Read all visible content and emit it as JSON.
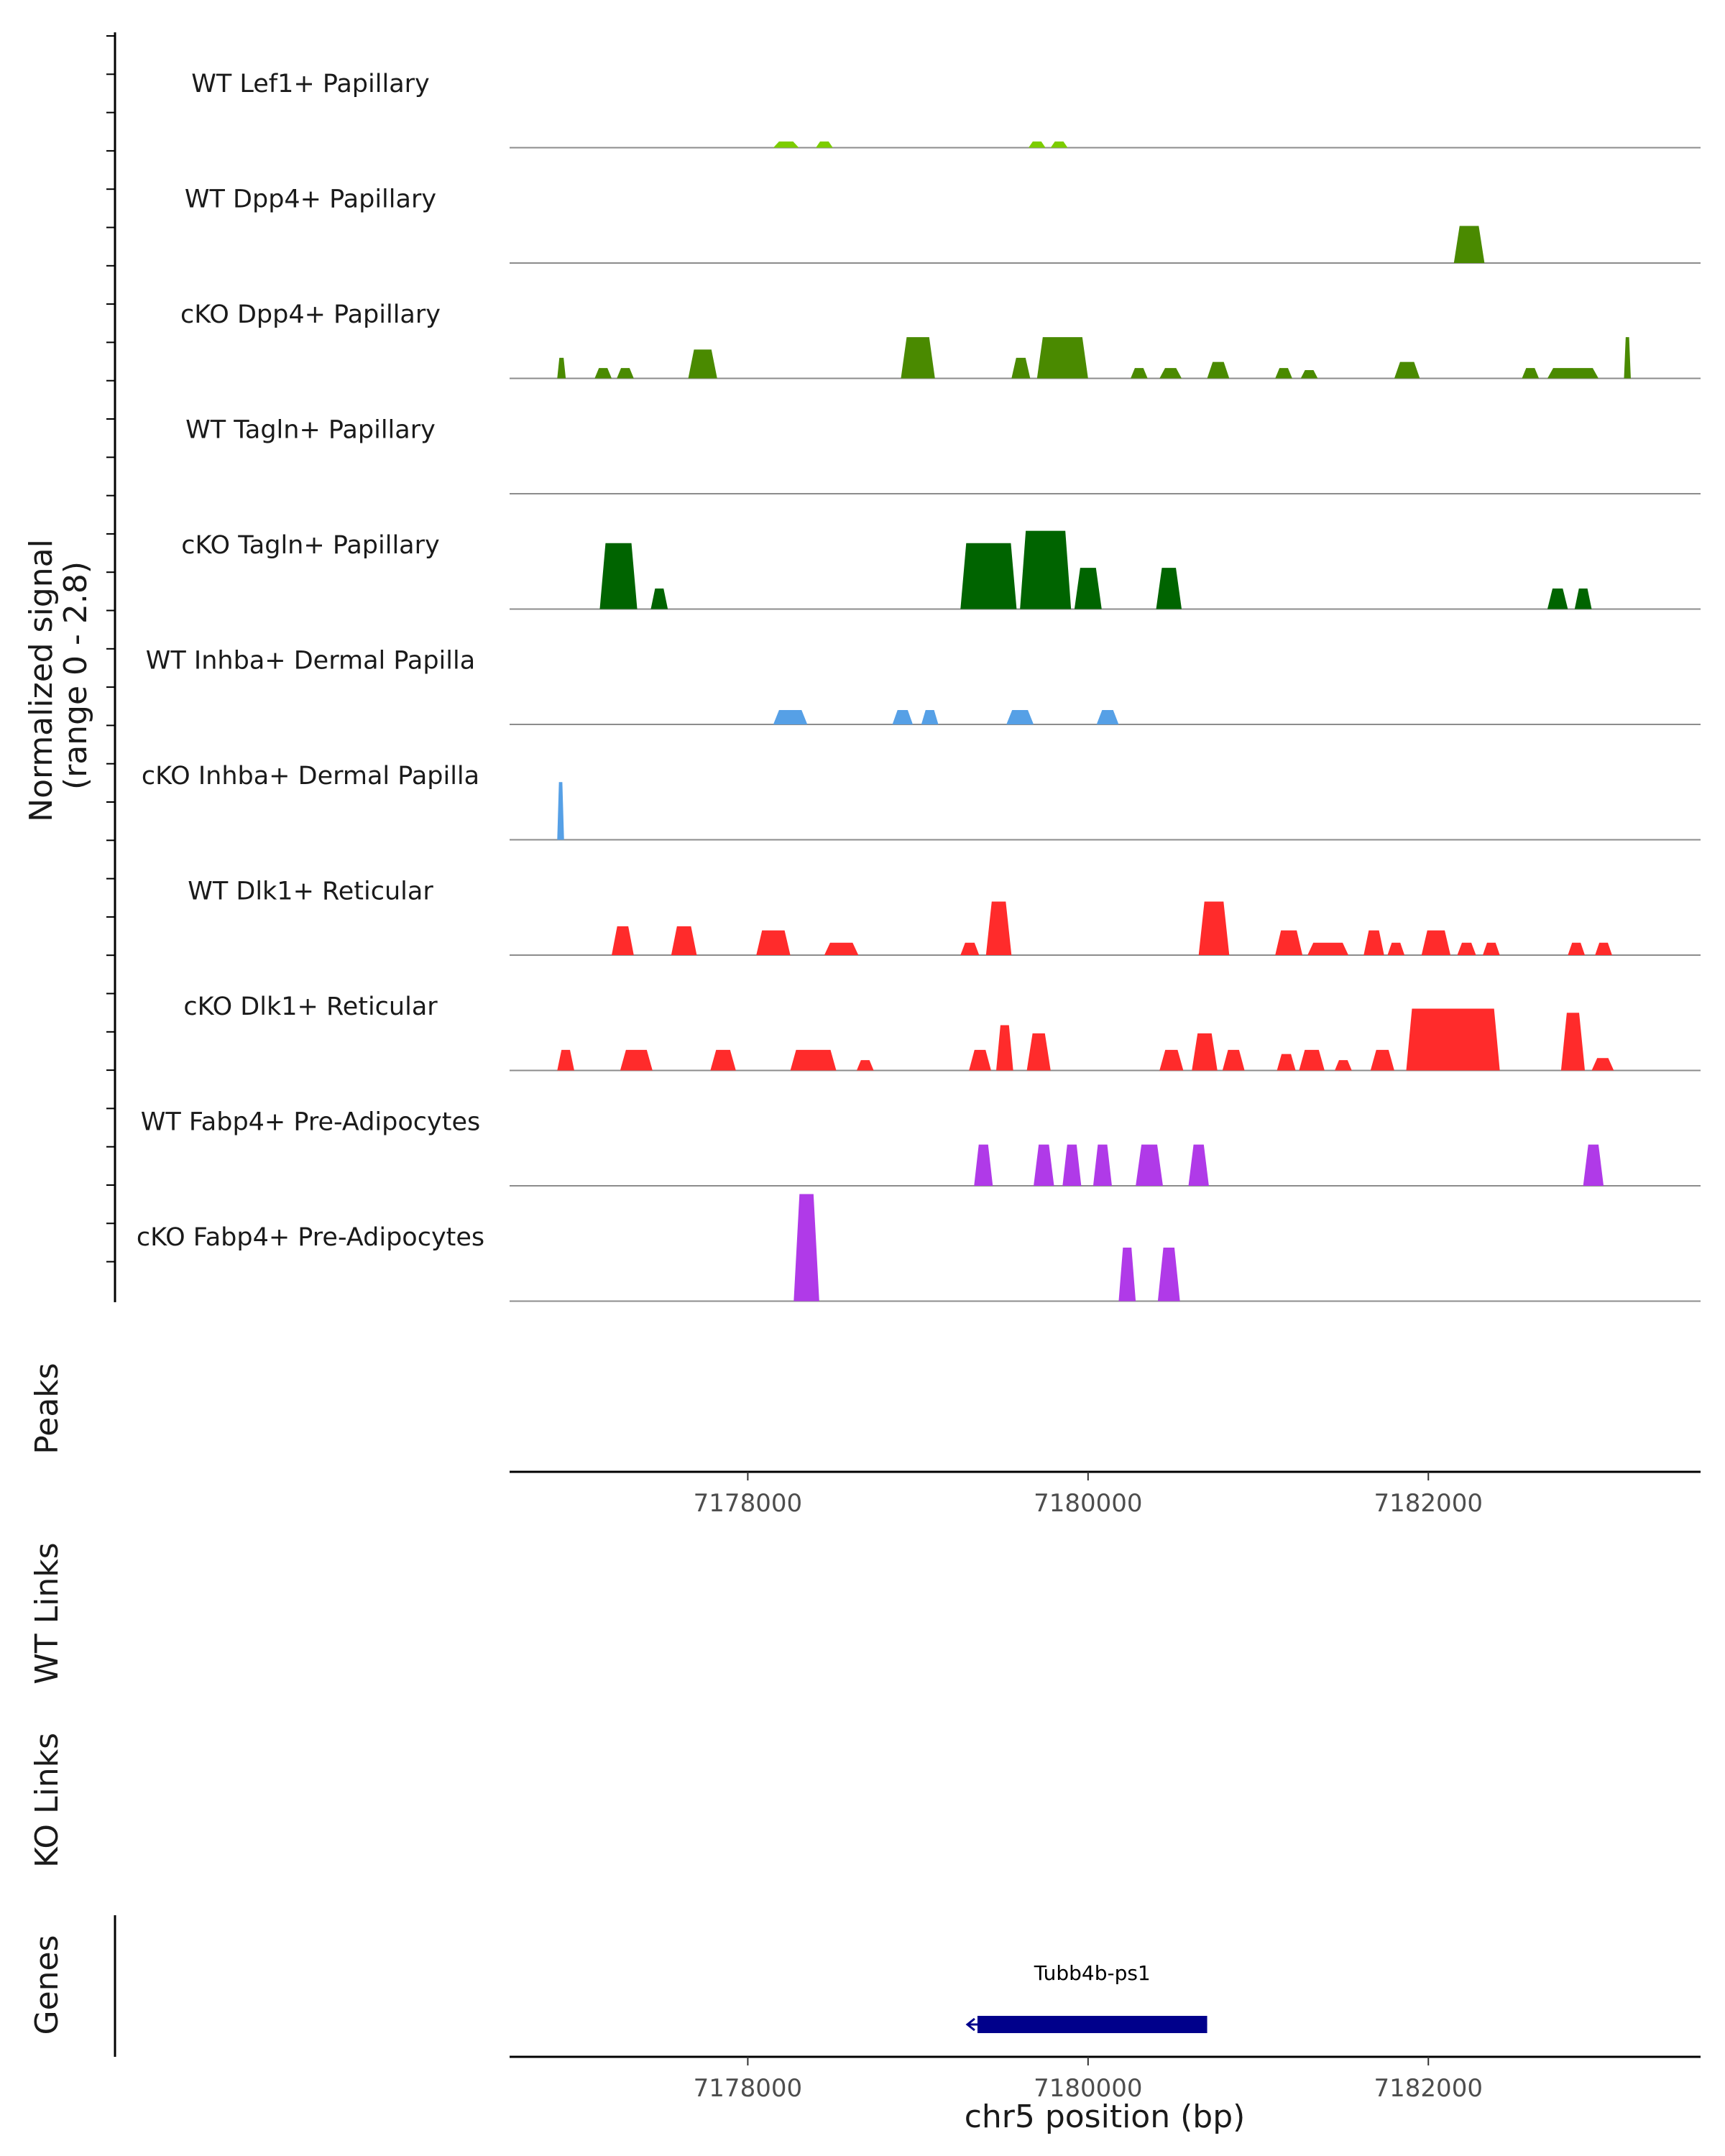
{
  "chart_data": {
    "type": "area",
    "title": "",
    "chromosome": "chr5",
    "xlabel": "chr5 position (bp)",
    "xlim": [
      7176600,
      7183600
    ],
    "ticks": [
      7178000,
      7180000,
      7182000
    ],
    "tick_labels": [
      "7178000",
      "7180000",
      "7182000"
    ],
    "coverage_ylabel": [
      "Normalized signal",
      "(range 0 - 2.8)"
    ],
    "ylim": [
      0,
      2.8
    ],
    "tracks": [
      {
        "name": "WT Lef1+ Papillary",
        "color": "#7ccd00",
        "peaks": [
          [
            7178150,
            7178300,
            0.15
          ],
          [
            7178400,
            7178500,
            0.15
          ],
          [
            7179650,
            7179750,
            0.15
          ],
          [
            7179780,
            7179880,
            0.15
          ]
        ]
      },
      {
        "name": "WT Dpp4+ Papillary",
        "color": "#4a8a00",
        "peaks": [
          [
            7182150,
            7182330,
            0.9
          ]
        ]
      },
      {
        "name": "cKO Dpp4+ Papillary",
        "color": "#4a8a00",
        "peaks": [
          [
            7176880,
            7176930,
            0.5
          ],
          [
            7177100,
            7177200,
            0.25
          ],
          [
            7177230,
            7177330,
            0.25
          ],
          [
            7177650,
            7177820,
            0.7
          ],
          [
            7178900,
            7179100,
            1.0
          ],
          [
            7179550,
            7179660,
            0.5
          ],
          [
            7179700,
            7180000,
            1.0
          ],
          [
            7180250,
            7180350,
            0.25
          ],
          [
            7180420,
            7180550,
            0.25
          ],
          [
            7180700,
            7180830,
            0.4
          ],
          [
            7181100,
            7181200,
            0.25
          ],
          [
            7181250,
            7181350,
            0.2
          ],
          [
            7181800,
            7181950,
            0.4
          ],
          [
            7182550,
            7182650,
            0.25
          ],
          [
            7182700,
            7183000,
            0.25
          ],
          [
            7183150,
            7183190,
            1.0
          ]
        ]
      },
      {
        "name": "WT Tagln+ Papillary",
        "color": "#006400",
        "peaks": []
      },
      {
        "name": "cKO Tagln+ Papillary",
        "color": "#006400",
        "peaks": [
          [
            7177130,
            7177350,
            1.6
          ],
          [
            7177430,
            7177530,
            0.5
          ],
          [
            7179250,
            7179580,
            1.6
          ],
          [
            7179600,
            7179900,
            1.9
          ],
          [
            7179920,
            7180080,
            1.0
          ],
          [
            7180400,
            7180550,
            1.0
          ],
          [
            7182700,
            7182820,
            0.5
          ],
          [
            7182860,
            7182960,
            0.5
          ]
        ]
      },
      {
        "name": "WT Inhba+ Dermal Papilla",
        "color": "#56a0e6",
        "peaks": [
          [
            7178150,
            7178350,
            0.35
          ],
          [
            7178850,
            7178970,
            0.35
          ],
          [
            7179020,
            7179120,
            0.35
          ],
          [
            7179520,
            7179680,
            0.35
          ],
          [
            7180050,
            7180180,
            0.35
          ]
        ]
      },
      {
        "name": "cKO Inhba+ Dermal Papilla",
        "color": "#56a0e6",
        "peaks": [
          [
            7176880,
            7176920,
            1.4
          ]
        ]
      },
      {
        "name": "WT Dlk1+ Reticular",
        "color": "#ff2b2b",
        "peaks": [
          [
            7177200,
            7177330,
            0.7
          ],
          [
            7177550,
            7177700,
            0.7
          ],
          [
            7178050,
            7178250,
            0.6
          ],
          [
            7178450,
            7178650,
            0.3
          ],
          [
            7179250,
            7179360,
            0.3
          ],
          [
            7179400,
            7179550,
            1.3
          ],
          [
            7180650,
            7180830,
            1.3
          ],
          [
            7181100,
            7181260,
            0.6
          ],
          [
            7181290,
            7181530,
            0.3
          ],
          [
            7181620,
            7181740,
            0.6
          ],
          [
            7181760,
            7181860,
            0.3
          ],
          [
            7181960,
            7182130,
            0.6
          ],
          [
            7182170,
            7182280,
            0.3
          ],
          [
            7182320,
            7182420,
            0.3
          ],
          [
            7182820,
            7182920,
            0.3
          ],
          [
            7182980,
            7183080,
            0.3
          ]
        ]
      },
      {
        "name": "cKO Dlk1+ Reticular",
        "color": "#ff2b2b",
        "peaks": [
          [
            7176880,
            7176980,
            0.5
          ],
          [
            7177250,
            7177440,
            0.5
          ],
          [
            7177780,
            7177930,
            0.5
          ],
          [
            7178250,
            7178520,
            0.5
          ],
          [
            7178640,
            7178740,
            0.25
          ],
          [
            7179300,
            7179430,
            0.5
          ],
          [
            7179460,
            7179560,
            1.1
          ],
          [
            7179640,
            7179780,
            0.9
          ],
          [
            7180420,
            7180560,
            0.5
          ],
          [
            7180610,
            7180760,
            0.9
          ],
          [
            7180790,
            7180920,
            0.5
          ],
          [
            7181110,
            7181220,
            0.4
          ],
          [
            7181240,
            7181390,
            0.5
          ],
          [
            7181450,
            7181550,
            0.25
          ],
          [
            7181660,
            7181800,
            0.5
          ],
          [
            7181870,
            7182420,
            1.5
          ],
          [
            7182780,
            7182920,
            1.4
          ],
          [
            7182960,
            7183090,
            0.3
          ]
        ]
      },
      {
        "name": "WT Fabp4+ Pre-Adipocytes",
        "color": "#b03ae8",
        "peaks": [
          [
            7179330,
            7179440,
            1.0
          ],
          [
            7179680,
            7179800,
            1.0
          ],
          [
            7179850,
            7179960,
            1.0
          ],
          [
            7180030,
            7180140,
            1.0
          ],
          [
            7180280,
            7180440,
            1.0
          ],
          [
            7180590,
            7180710,
            1.0
          ],
          [
            7182910,
            7183030,
            1.0
          ]
        ]
      },
      {
        "name": "cKO Fabp4+ Pre-Adipocytes",
        "color": "#b03ae8",
        "peaks": [
          [
            7178270,
            7178420,
            2.6
          ],
          [
            7180180,
            7180280,
            1.3
          ],
          [
            7180410,
            7180540,
            1.3
          ]
        ]
      }
    ],
    "annotation_tracks": [
      "Peaks",
      "WT Links",
      "KO Links"
    ],
    "genes_ylabel": "Genes",
    "genes": [
      {
        "name": "Tubb4b-ps1",
        "start": 7179350,
        "end": 7180700,
        "strand": "-",
        "color": "#00008b"
      }
    ]
  }
}
